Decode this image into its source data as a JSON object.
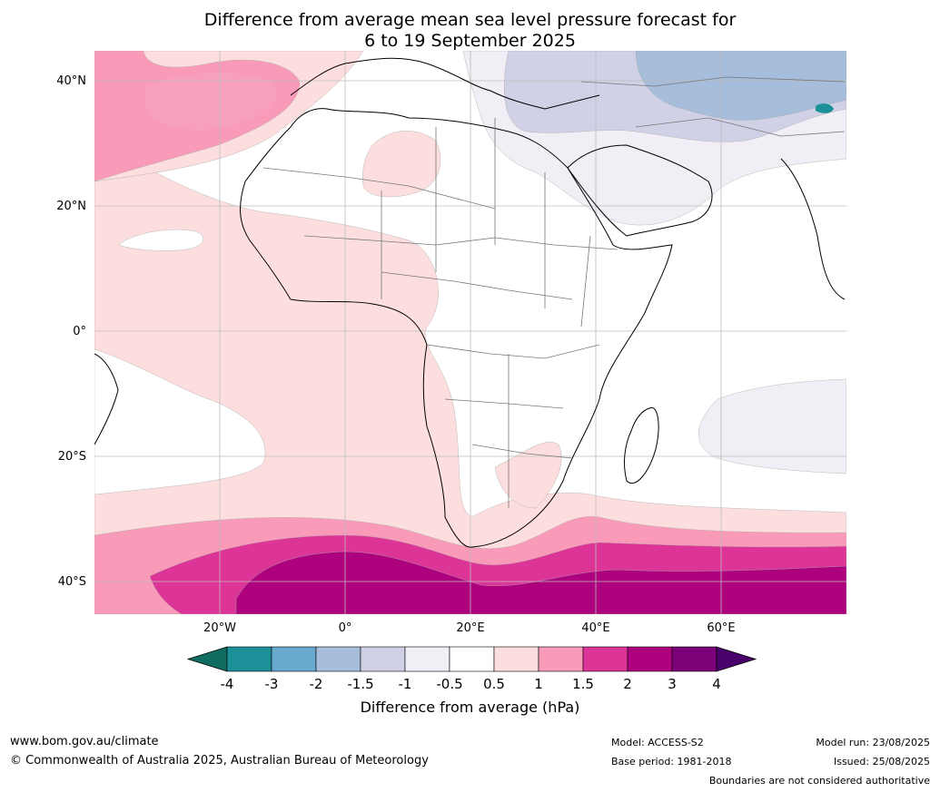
{
  "title": {
    "line1": "Difference from average mean sea level pressure forecast for",
    "line2": "6 to 19 September 2025"
  },
  "axes": {
    "lat_labels": [
      "40°N",
      "20°N",
      "0°",
      "20°S",
      "40°S"
    ],
    "lon_labels": [
      "20°W",
      "0°",
      "20°E",
      "40°E",
      "60°E"
    ]
  },
  "colorbar": {
    "ticks": [
      "-4",
      "-3",
      "-2",
      "-1.5",
      "-1",
      "-0.5",
      "0.5",
      "1",
      "1.5",
      "2",
      "3",
      "4"
    ],
    "colors": [
      "#0f6e61",
      "#1c9099",
      "#67a9cf",
      "#a6bddb",
      "#d0d1e6",
      "#f1eef6",
      "#ffffff",
      "#fddede",
      "#f99bb8",
      "#dd3497",
      "#ae017e",
      "#7a0177",
      "#49006a"
    ],
    "label": "Difference from average (hPa)"
  },
  "footer": {
    "website": "www.bom.gov.au/climate",
    "copyright": "© Commonwealth of Australia 2025, Australian Bureau of Meteorology",
    "model": "Model: ACCESS-S2",
    "base_period": "Base period: 1981-2018",
    "model_run": "Model run: 23/08/2025",
    "issued": "Issued: 25/08/2025",
    "disclaimer": "Boundaries are not considered authoritative"
  }
}
